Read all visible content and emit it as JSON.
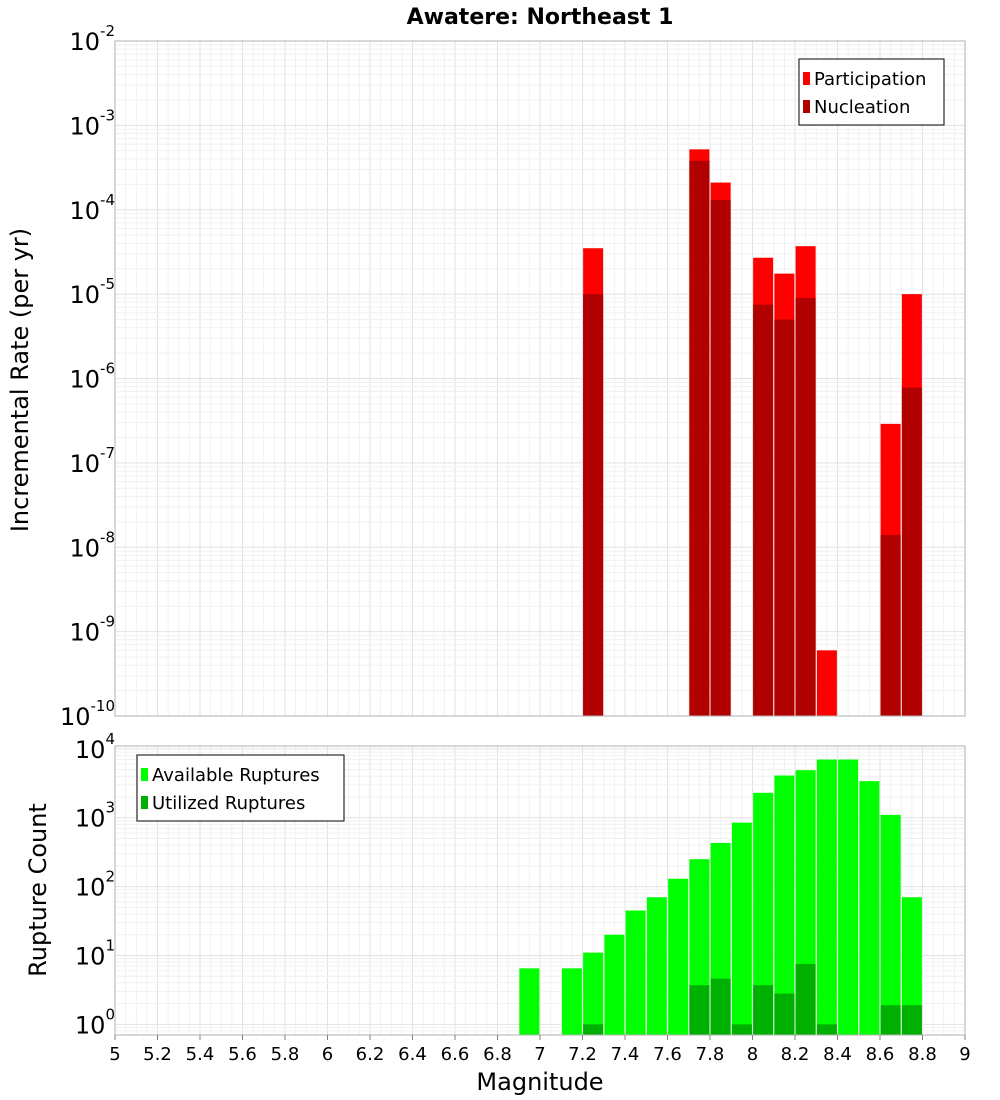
{
  "chart_data": [
    {
      "type": "bar",
      "title": "Awatere: Northeast 1",
      "xlabel": "Magnitude",
      "ylabel": "Incremental Rate (per yr)",
      "yscale": "log",
      "xlim": [
        5,
        9
      ],
      "ylim": [
        1e-10,
        0.01
      ],
      "ytick_labels": [
        {
          "base": "10",
          "exp": "-2"
        },
        {
          "base": "10",
          "exp": "-3"
        },
        {
          "base": "10",
          "exp": "-4"
        },
        {
          "base": "10",
          "exp": "-5"
        },
        {
          "base": "10",
          "exp": "-6"
        },
        {
          "base": "10",
          "exp": "-7"
        },
        {
          "base": "10",
          "exp": "-8"
        },
        {
          "base": "10",
          "exp": "-9"
        },
        {
          "base": "10",
          "exp": "-10"
        }
      ],
      "grid": true,
      "legend_position": "top-right",
      "series": [
        {
          "name": "Participation",
          "color": "#ff0000",
          "points": [
            {
              "x": 7.25,
              "y": 3.5e-05
            },
            {
              "x": 7.75,
              "y": 0.00052
            },
            {
              "x": 7.85,
              "y": 0.00021
            },
            {
              "x": 8.05,
              "y": 2.7e-05
            },
            {
              "x": 8.15,
              "y": 1.75e-05
            },
            {
              "x": 8.25,
              "y": 3.7e-05
            },
            {
              "x": 8.35,
              "y": 6e-10
            },
            {
              "x": 8.65,
              "y": 2.9e-07
            },
            {
              "x": 8.75,
              "y": 1e-05
            }
          ]
        },
        {
          "name": "Nucleation",
          "color": "#b00000",
          "points": [
            {
              "x": 7.25,
              "y": 1e-05
            },
            {
              "x": 7.75,
              "y": 0.00038
            },
            {
              "x": 7.85,
              "y": 0.00013
            },
            {
              "x": 8.05,
              "y": 7.5e-06
            },
            {
              "x": 8.15,
              "y": 5e-06
            },
            {
              "x": 8.25,
              "y": 9e-06
            },
            {
              "x": 8.65,
              "y": 1.4e-08
            },
            {
              "x": 8.75,
              "y": 7.8e-07
            }
          ]
        }
      ]
    },
    {
      "type": "bar",
      "xlabel": "Magnitude",
      "ylabel": "Rupture Count",
      "yscale": "log",
      "xlim": [
        5,
        9
      ],
      "ylim": [
        0.7,
        11000.0
      ],
      "ytick_labels": [
        {
          "base": "10",
          "exp": "4"
        },
        {
          "base": "10",
          "exp": "3"
        },
        {
          "base": "10",
          "exp": "2"
        },
        {
          "base": "10",
          "exp": "1"
        },
        {
          "base": "10",
          "exp": "0"
        }
      ],
      "xtick_labels": [
        "5",
        "5.2",
        "5.4",
        "5.6",
        "5.8",
        "6",
        "6.2",
        "6.4",
        "6.6",
        "6.8",
        "7",
        "7.2",
        "7.4",
        "7.6",
        "7.8",
        "8",
        "8.2",
        "8.4",
        "8.6",
        "8.8",
        "9"
      ],
      "grid": true,
      "legend_position": "top-left",
      "series": [
        {
          "name": "Available Ruptures",
          "color": "#00ff00",
          "points": [
            {
              "x": 6.95,
              "y": 6.5
            },
            {
              "x": 7.15,
              "y": 6.5
            },
            {
              "x": 7.25,
              "y": 11
            },
            {
              "x": 7.35,
              "y": 20
            },
            {
              "x": 7.45,
              "y": 45
            },
            {
              "x": 7.55,
              "y": 70
            },
            {
              "x": 7.65,
              "y": 130
            },
            {
              "x": 7.75,
              "y": 250
            },
            {
              "x": 7.85,
              "y": 430
            },
            {
              "x": 7.95,
              "y": 850
            },
            {
              "x": 8.05,
              "y": 2300
            },
            {
              "x": 8.15,
              "y": 4100
            },
            {
              "x": 8.25,
              "y": 4900
            },
            {
              "x": 8.35,
              "y": 7000
            },
            {
              "x": 8.45,
              "y": 7000
            },
            {
              "x": 8.55,
              "y": 3400
            },
            {
              "x": 8.65,
              "y": 1100
            },
            {
              "x": 8.75,
              "y": 70
            }
          ]
        },
        {
          "name": "Utilized Ruptures",
          "color": "#00b000",
          "points": [
            {
              "x": 7.25,
              "y": 1
            },
            {
              "x": 7.75,
              "y": 3.7
            },
            {
              "x": 7.85,
              "y": 4.6
            },
            {
              "x": 7.95,
              "y": 1
            },
            {
              "x": 8.05,
              "y": 3.7
            },
            {
              "x": 8.15,
              "y": 2.8
            },
            {
              "x": 8.25,
              "y": 7.5
            },
            {
              "x": 8.35,
              "y": 1
            },
            {
              "x": 8.65,
              "y": 1.9
            },
            {
              "x": 8.75,
              "y": 1.9
            }
          ]
        }
      ]
    }
  ]
}
